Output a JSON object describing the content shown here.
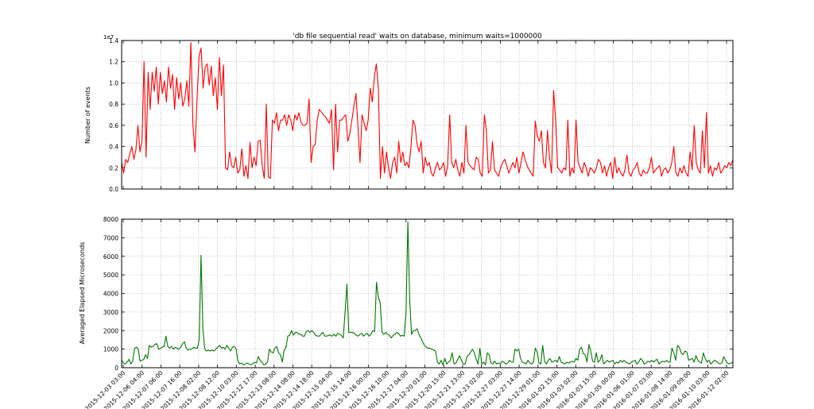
{
  "figure": {
    "title": "'db file sequential read' waits on            database, minimum waits=1000000"
  },
  "chart_data": [
    {
      "type": "line",
      "ylabel": "Number of events",
      "y_offset_label": "1e7",
      "ylim": [
        0,
        1.4
      ],
      "yticks": [
        "0.0",
        "0.2",
        "0.4",
        "0.6",
        "0.8",
        "1.0",
        "1.2",
        "1.4"
      ],
      "grid": true,
      "color": "#ff0000",
      "series": [
        {
          "values": [
            0.25,
            0.15,
            0.28,
            0.25,
            0.33,
            0.4,
            0.28,
            0.37,
            0.6,
            0.35,
            0.45,
            1.2,
            0.3,
            1.1,
            0.75,
            1.1,
            0.92,
            1.15,
            0.8,
            1.1,
            0.9,
            1.02,
            0.82,
            1.15,
            0.95,
            1.08,
            0.75,
            1.05,
            0.85,
            1.0,
            0.78,
            0.85,
            1.02,
            0.78,
            1.38,
            0.6,
            0.35,
            0.85,
            1.25,
            1.33,
            0.95,
            1.15,
            1.18,
            0.98,
            1.16,
            0.88,
            1.05,
            0.75,
            1.24,
            0.88,
            1.17,
            0.2,
            0.18,
            0.35,
            0.22,
            0.2,
            0.3,
            0.15,
            0.18,
            0.38,
            0.12,
            0.22,
            0.1,
            0.44,
            0.2,
            0.3,
            0.22,
            0.45,
            0.46,
            0.22,
            0.1,
            0.8,
            0.12,
            0.1,
            0.65,
            0.62,
            0.72,
            0.55,
            0.65,
            0.65,
            0.7,
            0.6,
            0.7,
            0.65,
            0.55,
            0.7,
            0.65,
            0.72,
            0.63,
            0.6,
            0.6,
            0.62,
            0.85,
            0.25,
            0.4,
            0.42,
            0.65,
            0.75,
            0.73,
            0.7,
            0.68,
            0.65,
            0.62,
            0.75,
            0.18,
            0.8,
            0.35,
            0.65,
            0.65,
            0.68,
            0.7,
            0.45,
            0.52,
            0.65,
            0.78,
            0.9,
            0.58,
            0.25,
            0.7,
            0.62,
            0.55,
            0.65,
            0.95,
            0.82,
            1.05,
            1.18,
            0.95,
            0.1,
            0.4,
            0.15,
            0.35,
            0.2,
            0.1,
            0.25,
            0.3,
            0.15,
            0.45,
            0.25,
            0.35,
            0.22,
            0.25,
            0.2,
            0.4,
            0.65,
            0.6,
            0.42,
            0.35,
            0.45,
            0.15,
            0.3,
            0.22,
            0.25,
            0.15,
            0.12,
            0.2,
            0.25,
            0.18,
            0.2,
            0.25,
            0.12,
            0.22,
            0.7,
            0.25,
            0.2,
            0.28,
            0.18,
            0.12,
            0.25,
            0.15,
            0.6,
            0.25,
            0.22,
            0.2,
            0.18,
            0.3,
            0.28,
            0.15,
            0.12,
            0.7,
            0.55,
            0.15,
            0.18,
            0.45,
            0.18,
            0.15,
            0.12,
            0.2,
            0.25,
            0.28,
            0.22,
            0.15,
            0.2,
            0.25,
            0.2,
            0.3,
            0.15,
            0.25,
            0.35,
            0.28,
            0.22,
            0.18,
            0.15,
            0.12,
            0.64,
            0.5,
            0.45,
            0.55,
            0.25,
            0.2,
            0.55,
            0.3,
            0.15,
            0.93,
            0.65,
            0.2,
            0.18,
            0.15,
            0.2,
            0.18,
            0.65,
            0.12,
            0.2,
            0.15,
            0.65,
            0.25,
            0.2,
            0.15,
            0.25,
            0.2,
            0.12,
            0.2,
            0.18,
            0.15,
            0.2,
            0.28,
            0.25,
            0.15,
            0.22,
            0.12,
            0.2,
            0.25,
            0.1,
            0.3,
            0.15,
            0.2,
            0.15,
            0.12,
            0.18,
            0.32,
            0.15,
            0.12,
            0.18,
            0.2,
            0.25,
            0.15,
            0.12,
            0.18,
            0.15,
            0.15,
            0.2,
            0.3,
            0.15,
            0.18,
            0.2,
            0.22,
            0.12,
            0.18,
            0.2,
            0.15,
            0.18,
            0.25,
            0.4,
            0.15,
            0.12,
            0.2,
            0.15,
            0.22,
            0.15,
            0.12,
            0.35,
            0.18,
            0.6,
            0.25,
            0.18,
            0.15,
            0.55,
            0.2,
            0.72,
            0.15,
            0.22,
            0.12,
            0.2,
            0.18,
            0.25,
            0.15,
            0.18,
            0.22,
            0.2,
            0.25,
            0.22,
            0.28
          ]
        }
      ]
    },
    {
      "type": "line",
      "ylabel": "Averaged Elapsed Microseconds",
      "ylim": [
        0,
        8000
      ],
      "yticks": [
        "0",
        "1000",
        "2000",
        "3000",
        "4000",
        "5000",
        "6000",
        "7000",
        "8000"
      ],
      "grid": true,
      "color": "#007700",
      "xticks": [
        "2015-12-03 03:00",
        "2015-12-06 04:00",
        "2015-12-07 06:00",
        "2015-12-07 16:00",
        "2015-12-08 02:00",
        "2015-12-08 12:00",
        "2015-12-10 03:00",
        "2015-12-12 17:00",
        "2015-12-13 08:00",
        "2015-12-14 08:00",
        "2015-12-14 18:00",
        "2015-12-15 04:00",
        "2015-12-15 14:00",
        "2015-12-16 00:00",
        "2015-12-16 10:00",
        "2015-12-17 04:00",
        "2015-12-20 01:00",
        "2015-12-20 15:00",
        "2015-12-21 23:00",
        "2015-12-23 02:00",
        "2015-12-27 03:00",
        "2015-12-27 14:00",
        "2015-12-29 01:00",
        "2016-01-02 15:00",
        "2016-01-03 02:00",
        "2016-01-03 15:00",
        "2016-01-05 00:00",
        "2016-01-06 01:00",
        "2016-01-07 03:00",
        "2016-01-08 14:00",
        "2016-01-09 09:00",
        "2016-01-10 03:00",
        "2016-01-12 02:00"
      ],
      "series": [
        {
          "values": [
            400,
            250,
            200,
            300,
            450,
            200,
            350,
            1050,
            1100,
            1000,
            350,
            400,
            450,
            700,
            500,
            1200,
            1100,
            1150,
            1250,
            1300,
            1000,
            1050,
            1100,
            1150,
            1700,
            1150,
            1050,
            1150,
            1000,
            1100,
            1050,
            1000,
            1100,
            1300,
            1400,
            1050,
            950,
            1000,
            1000,
            1100,
            1050,
            1050,
            1500,
            6050,
            2100,
            1000,
            900,
            950,
            900,
            950,
            900,
            1000,
            1100,
            1200,
            1050,
            1100,
            1000,
            1200,
            1050,
            900,
            1100,
            1150,
            1000,
            350,
            200,
            250,
            150,
            200,
            250,
            200,
            150,
            200,
            300,
            250,
            600,
            400,
            300,
            150,
            200,
            300,
            1000,
            850,
            800,
            1050,
            1150,
            800,
            700,
            300,
            950,
            1100,
            1700,
            1750,
            2000,
            1750,
            1900,
            1900,
            1800,
            1800,
            1700,
            1700,
            1950,
            2000,
            1900,
            2000,
            1900,
            1750,
            1700,
            1700,
            1800,
            1900,
            1700,
            1700,
            1750,
            1750,
            1700,
            1800,
            1700,
            1850,
            1800,
            1750,
            1600,
            3000,
            4500,
            1900,
            1900,
            1900,
            1850,
            1750,
            1700,
            1800,
            1850,
            1700,
            1800,
            1850,
            1700,
            1800,
            2000,
            1950,
            4600,
            3800,
            3500,
            1900,
            1800,
            1900,
            1800,
            1750,
            1600,
            1750,
            1800,
            1900,
            1850,
            1700,
            1750,
            1700,
            3000,
            7850,
            3600,
            1800,
            2000,
            2000,
            2100,
            1800,
            1600,
            1400,
            1200,
            1100,
            1050,
            1050,
            1000,
            950,
            900,
            300,
            200,
            400,
            150,
            500,
            200,
            300,
            400,
            800,
            200,
            250,
            450,
            650,
            400,
            200,
            200,
            600,
            700,
            850,
            1000,
            800,
            450,
            200,
            1050,
            200,
            300,
            150,
            800,
            700,
            250,
            200,
            350,
            200,
            250,
            200,
            350,
            300,
            200,
            250,
            400,
            300,
            300,
            1000,
            900,
            1000,
            500,
            300,
            250,
            200,
            400,
            250,
            200,
            300,
            1050,
            850,
            250,
            200,
            1200,
            350,
            200,
            400,
            500,
            300,
            350,
            400,
            300,
            600,
            300,
            250,
            200,
            300,
            250,
            300,
            350,
            300,
            500,
            400,
            1000,
            1100,
            750,
            700,
            300,
            1250,
            900,
            350,
            300,
            800,
            300,
            400,
            700,
            200,
            300,
            400,
            300,
            350,
            400,
            200,
            300,
            250,
            400,
            300,
            400,
            300,
            250,
            200,
            300,
            350,
            400,
            200,
            300,
            500,
            400,
            200,
            250,
            350,
            300,
            400,
            300,
            400,
            450,
            200,
            300,
            350,
            300,
            400,
            300,
            300,
            1050,
            800,
            400,
            1200,
            1100,
            800,
            700,
            900,
            850,
            400,
            450,
            500,
            300,
            650,
            400,
            300,
            250,
            800,
            500,
            300,
            400,
            200,
            300,
            400,
            350,
            250,
            200,
            250,
            600,
            400,
            250,
            200,
            250,
            300
          ]
        }
      ]
    }
  ]
}
